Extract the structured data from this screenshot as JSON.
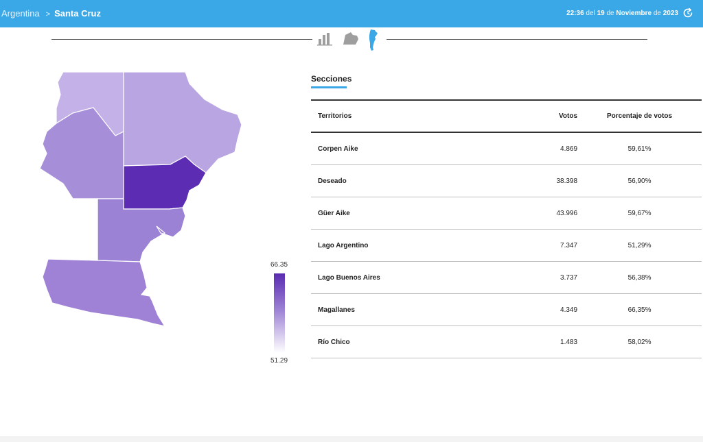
{
  "header": {
    "breadcrumb_root": "Argentina",
    "breadcrumb_separator": ">",
    "breadcrumb_current": "Santa Cruz",
    "time": "22:36",
    "date_prefix": "del",
    "day": "19",
    "date_middle": "de",
    "month": "Noviembre",
    "date_suffix": "de",
    "year": "2023",
    "refresh_icon": "refresh-icon",
    "bar_color": "#3aa8e6"
  },
  "view_switcher": {
    "options": [
      "bar-chart-icon",
      "map-region-icon",
      "argentina-map-icon"
    ],
    "active": "argentina-map-icon",
    "active_color": "#3aa8e6",
    "inactive_color": "#9e9e9e"
  },
  "legend": {
    "max": "66.35",
    "min": "51.29",
    "color_high": "#5a2bb1",
    "color_low": "#ffffff"
  },
  "section": {
    "title": "Secciones"
  },
  "table": {
    "headers": {
      "territory": "Territorios",
      "votes": "Votos",
      "percentage": "Porcentaje de votos"
    },
    "rows": [
      {
        "territory": "Corpen Aike",
        "votes": "4.869",
        "percentage": "59,61%"
      },
      {
        "territory": "Deseado",
        "votes": "38.398",
        "percentage": "56,90%"
      },
      {
        "territory": "Güer Aike",
        "votes": "43.996",
        "percentage": "59,67%"
      },
      {
        "territory": "Lago Argentino",
        "votes": "7.347",
        "percentage": "51,29%"
      },
      {
        "territory": "Lago Buenos Aires",
        "votes": "3.737",
        "percentage": "56,38%"
      },
      {
        "territory": "Magallanes",
        "votes": "4.349",
        "percentage": "66,35%"
      },
      {
        "territory": "Río Chico",
        "votes": "1.483",
        "percentage": "58,02%"
      }
    ]
  },
  "map": {
    "regions": [
      {
        "name": "Lago Buenos Aires",
        "value": 56.38,
        "color": "#c4b1e8"
      },
      {
        "name": "Deseado",
        "value": 56.9,
        "color": "#b9a5e2"
      },
      {
        "name": "Río Chico",
        "value": 58.02,
        "color": "#a68ed9"
      },
      {
        "name": "Magallanes",
        "value": 66.35,
        "color": "#5c2db3"
      },
      {
        "name": "Corpen Aike",
        "value": 59.61,
        "color": "#9c82d5"
      },
      {
        "name": "Lago Argentino",
        "value": 51.29,
        "color": "#ffffff"
      },
      {
        "name": "Güer Aike",
        "value": 59.67,
        "color": "#9f82d6"
      }
    ]
  }
}
